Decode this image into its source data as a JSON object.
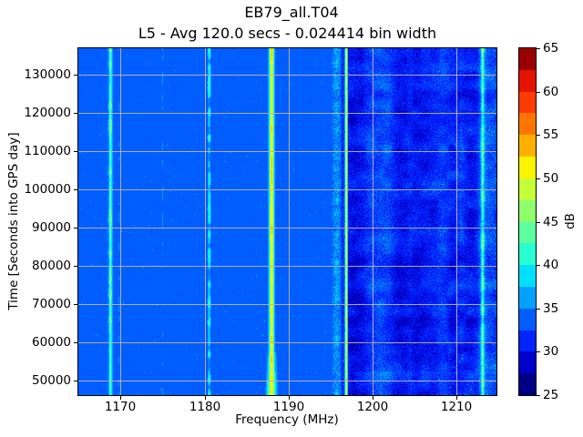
{
  "chart_data": {
    "type": "heatmap",
    "title": "EB79_all.T04",
    "subtitle": "L5 - Avg 120.0 secs - 0.024414 bin width",
    "xlabel": "Frequency (MHz)",
    "ylabel": "Time [Seconds into GPS day]",
    "xlim": [
      1164.95,
      1214.8
    ],
    "ylim": [
      46200,
      136900
    ],
    "xticks": [
      1170,
      1180,
      1190,
      1200,
      1210
    ],
    "yticks": [
      50000,
      60000,
      70000,
      80000,
      90000,
      100000,
      110000,
      120000,
      130000
    ],
    "grid": true,
    "grid_color": "rgba(183,179,177,0.95)",
    "colorbar": {
      "label": "dB",
      "vmin": 25,
      "vmax": 65,
      "ticks": [
        25,
        30,
        35,
        40,
        45,
        50,
        55,
        60,
        65
      ],
      "n_levels": 16,
      "colors": [
        "#000084",
        "#0000cd",
        "#0023ff",
        "#005dff",
        "#00a2ff",
        "#00e0fd",
        "#27ffd3",
        "#5cffa0",
        "#8dff6d",
        "#c4ff3a",
        "#f9f400",
        "#ffb000",
        "#ff7500",
        "#ff3b00",
        "#e61300",
        "#9b0000"
      ]
    },
    "background_db": 33.8,
    "stripes": [
      {
        "freq_mhz": 1168.78,
        "peak_db": 41.5,
        "sigma_mhz": 0.14,
        "mode": "vary",
        "shoulder_db": 3.0,
        "shoulder_sigma": 0.3
      },
      {
        "freq_mhz": 1169.78,
        "peak_db": 36.3,
        "sigma_mhz": 0.09,
        "mode": "sparse"
      },
      {
        "freq_mhz": 1175.0,
        "peak_db": 36.6,
        "sigma_mhz": 0.1,
        "mode": "sparse"
      },
      {
        "freq_mhz": 1180.55,
        "peak_db": 40.8,
        "sigma_mhz": 0.13,
        "mode": "vary2",
        "shoulder_db": 2.0,
        "shoulder_sigma": 0.26
      },
      {
        "freq_mhz": 1188.0,
        "peak_db": 51.0,
        "sigma_mhz": 0.27,
        "mode": "steady",
        "widen_bottom": true
      },
      {
        "freq_mhz": 1195.75,
        "peak_db": 36.8,
        "sigma_mhz": 0.45,
        "mode": "patchy",
        "jitter_db": 3.6
      },
      {
        "freq_mhz": 1196.9,
        "peak_db": 51.5,
        "sigma_mhz": 0.12,
        "mode": "steady"
      },
      {
        "freq_mhz": 1213.15,
        "peak_db": 41.0,
        "sigma_mhz": 0.17,
        "mode": "vary",
        "shoulder_db": 3.4,
        "shoulder_sigma": 0.42,
        "boost_top": true
      }
    ],
    "pre_notch": {
      "freq_mhz": 1196.45,
      "sigma_mhz": 0.2,
      "depth_db": 2.0
    },
    "noise_region": {
      "from_mhz": 1197.12,
      "to_mhz": 1214.8,
      "speckle_db": 1.9,
      "blob_db": 2.6,
      "row_band_db": 1.8,
      "profile": [
        [
          1197.1,
          30.6
        ],
        [
          1197.9,
          30.0
        ],
        [
          1198.8,
          30.2
        ],
        [
          1199.3,
          31.4
        ],
        [
          1199.9,
          32.4
        ],
        [
          1200.6,
          33.0
        ],
        [
          1201.2,
          33.2
        ],
        [
          1202.0,
          32.8
        ],
        [
          1202.6,
          31.4
        ],
        [
          1203.2,
          30.4
        ],
        [
          1204.0,
          30.2
        ],
        [
          1204.5,
          31.2
        ],
        [
          1205.2,
          30.3
        ],
        [
          1206.0,
          30.4
        ],
        [
          1206.8,
          30.9
        ],
        [
          1207.6,
          31.4
        ],
        [
          1208.3,
          32.3
        ],
        [
          1209.0,
          31.7
        ],
        [
          1209.7,
          30.9
        ],
        [
          1210.6,
          31.6
        ],
        [
          1211.4,
          30.7
        ],
        [
          1212.2,
          30.9
        ],
        [
          1212.8,
          31.9
        ],
        [
          1213.6,
          32.8
        ],
        [
          1214.3,
          33.1
        ],
        [
          1214.8,
          32.8
        ]
      ]
    },
    "render_seed": 42
  }
}
